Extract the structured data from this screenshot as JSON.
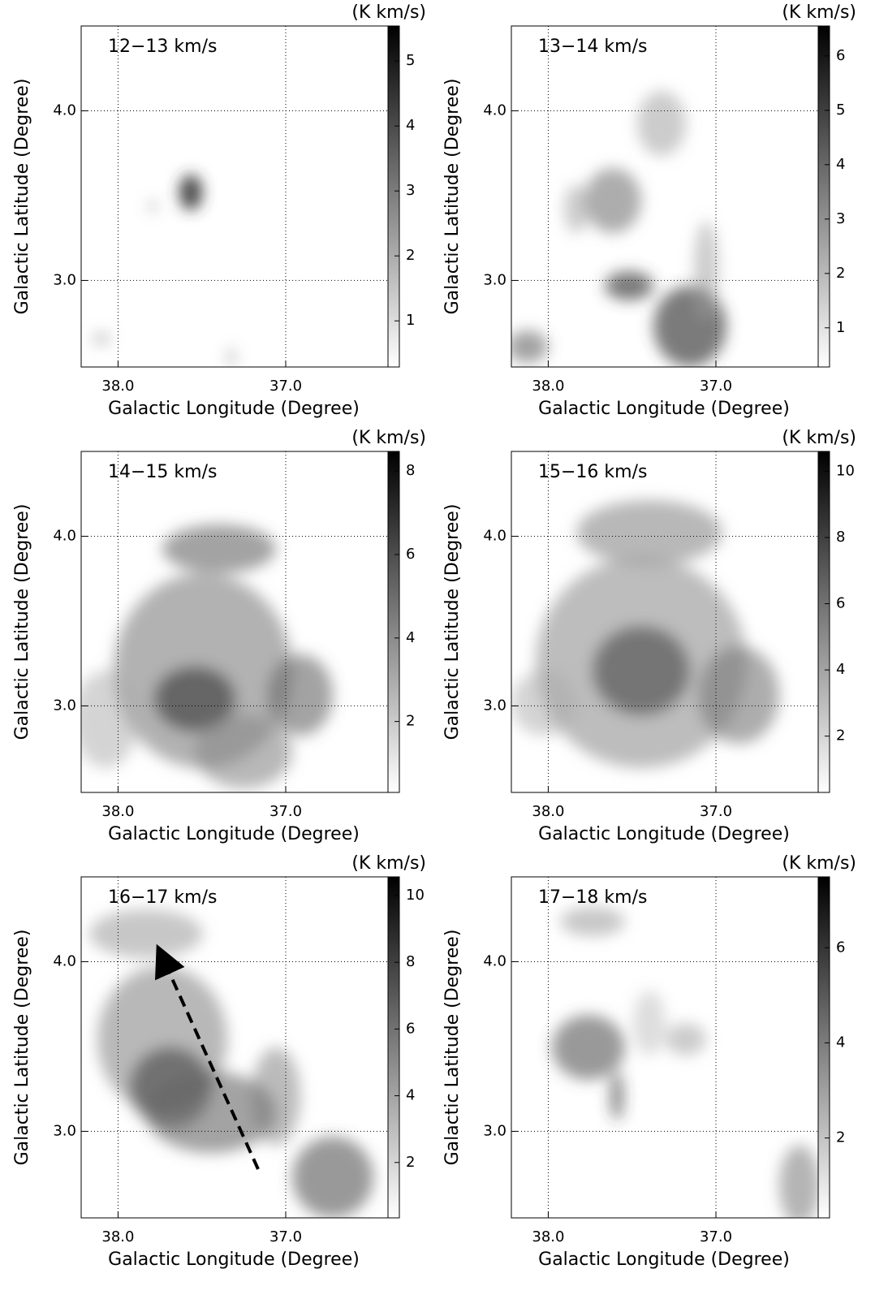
{
  "chart_data": [
    {
      "type": "heatmap",
      "title": "12−13 km/s",
      "xlabel": "Galactic Longitude (Degree)",
      "ylabel": "Galactic Latitude (Degree)",
      "colorbar_label": "(K km/s)",
      "xlim": [
        38.22,
        36.39
      ],
      "ylim": [
        2.49,
        4.5
      ],
      "xticks": [
        {
          "value": 38,
          "label": "38.0"
        },
        {
          "value": 37,
          "label": "37.0"
        }
      ],
      "yticks": [
        {
          "value": 3,
          "label": "3.0"
        },
        {
          "value": 4,
          "label": "4.0"
        }
      ],
      "clim": [
        0.29,
        5.54
      ],
      "cticks": [
        1,
        2,
        3,
        4,
        5
      ],
      "grid": true
    },
    {
      "type": "heatmap",
      "title": "13−14 km/s",
      "xlabel": "Galactic Longitude (Degree)",
      "ylabel": "Galactic Latitude (Degree)",
      "colorbar_label": "(K km/s)",
      "xlim": [
        38.22,
        36.39
      ],
      "ylim": [
        2.49,
        4.5
      ],
      "xticks": [
        {
          "value": 38,
          "label": "38.0"
        },
        {
          "value": 37,
          "label": "37.0"
        }
      ],
      "yticks": [
        {
          "value": 3,
          "label": "3.0"
        },
        {
          "value": 4,
          "label": "4.0"
        }
      ],
      "clim": [
        0.28,
        6.55
      ],
      "cticks": [
        1,
        2,
        3,
        4,
        5,
        6
      ],
      "grid": true
    },
    {
      "type": "heatmap",
      "title": "14−15 km/s",
      "xlabel": "Galactic Longitude (Degree)",
      "ylabel": "Galactic Latitude (Degree)",
      "colorbar_label": "(K km/s)",
      "xlim": [
        38.22,
        36.39
      ],
      "ylim": [
        2.49,
        4.5
      ],
      "xticks": [
        {
          "value": 38,
          "label": "38.0"
        },
        {
          "value": 37,
          "label": "37.0"
        }
      ],
      "yticks": [
        {
          "value": 3,
          "label": "3.0"
        },
        {
          "value": 4,
          "label": "4.0"
        }
      ],
      "clim": [
        0.3,
        8.47
      ],
      "cticks": [
        2,
        4,
        6,
        8
      ],
      "grid": true
    },
    {
      "type": "heatmap",
      "title": "15−16 km/s",
      "xlabel": "Galactic Longitude (Degree)",
      "ylabel": "Galactic Latitude (Degree)",
      "colorbar_label": "(K km/s)",
      "xlim": [
        38.22,
        36.39
      ],
      "ylim": [
        2.49,
        4.5
      ],
      "xticks": [
        {
          "value": 38,
          "label": "38.0"
        },
        {
          "value": 37,
          "label": "37.0"
        }
      ],
      "yticks": [
        {
          "value": 3,
          "label": "3.0"
        },
        {
          "value": 4,
          "label": "4.0"
        }
      ],
      "clim": [
        0.3,
        10.6
      ],
      "cticks": [
        2,
        4,
        6,
        8,
        10
      ],
      "grid": true
    },
    {
      "type": "heatmap",
      "title": "16−17 km/s",
      "xlabel": "Galactic Longitude (Degree)",
      "ylabel": "Galactic Latitude (Degree)",
      "colorbar_label": "(K km/s)",
      "xlim": [
        38.22,
        36.39
      ],
      "ylim": [
        2.49,
        4.5
      ],
      "xticks": [
        {
          "value": 38,
          "label": "38.0"
        },
        {
          "value": 37,
          "label": "37.0"
        }
      ],
      "yticks": [
        {
          "value": 3,
          "label": "3.0"
        },
        {
          "value": 4,
          "label": "4.0"
        }
      ],
      "clim": [
        0.34,
        10.56
      ],
      "cticks": [
        2,
        4,
        6,
        8,
        10
      ],
      "grid": true
    },
    {
      "type": "heatmap",
      "title": "17−18 km/s",
      "xlabel": "Galactic Longitude (Degree)",
      "ylabel": "Galactic Latitude (Degree)",
      "colorbar_label": "(K km/s)",
      "xlim": [
        38.22,
        36.39
      ],
      "ylim": [
        2.49,
        4.5
      ],
      "xticks": [
        {
          "value": 38,
          "label": "38.0"
        },
        {
          "value": 37,
          "label": "37.0"
        }
      ],
      "yticks": [
        {
          "value": 3,
          "label": "3.0"
        },
        {
          "value": 4,
          "label": "4.0"
        }
      ],
      "clim": [
        0.32,
        7.49
      ],
      "cticks": [
        2,
        4,
        6
      ],
      "grid": true
    }
  ]
}
